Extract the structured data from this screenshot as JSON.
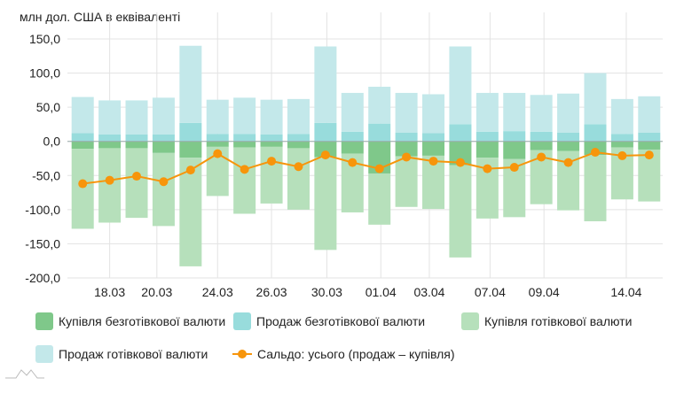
{
  "chart_data": {
    "type": "bar",
    "stacked": true,
    "unit_label": "млн дол. США в еквіваленті",
    "ylim": [
      -200,
      150
    ],
    "yticks": [
      "150,0",
      "100,0",
      "50,0",
      "0,0",
      "-50,0",
      "-100,0",
      "-150,0",
      "-200,0"
    ],
    "ytick_values": [
      150,
      100,
      50,
      0,
      -50,
      -100,
      -150,
      -200
    ],
    "xticks": [
      {
        "label": "18.03",
        "index": 1.0
      },
      {
        "label": "20.03",
        "index": 2.75
      },
      {
        "label": "24.03",
        "index": 5.0
      },
      {
        "label": "26.03",
        "index": 7.0
      },
      {
        "label": "30.03",
        "index": 9.05
      },
      {
        "label": "01.04",
        "index": 11.05
      },
      {
        "label": "03.04",
        "index": 12.85
      },
      {
        "label": "07.04",
        "index": 15.1
      },
      {
        "label": "09.04",
        "index": 17.1
      },
      {
        "label": "14.04",
        "index": 20.15
      }
    ],
    "n_categories": 22,
    "series": [
      {
        "name": "Купівля безготівкової валюти",
        "color": "#7fc88a",
        "values": [
          -11,
          -10,
          -10,
          -17,
          -24,
          -8,
          -9,
          -8,
          -10,
          -23,
          -18,
          -47,
          -22,
          -21,
          -35,
          -24,
          -26,
          -13,
          -14,
          -20,
          -9,
          -12
        ]
      },
      {
        "name": "Продаж безготівкової валюти",
        "color": "#98dcdc",
        "values": [
          12,
          10,
          10,
          10,
          27,
          11,
          11,
          10,
          11,
          27,
          14,
          26,
          13,
          12,
          25,
          14,
          15,
          14,
          13,
          25,
          11,
          13
        ]
      },
      {
        "name": "Купівля готівкової валюти",
        "color": "#b6e0bb",
        "values": [
          -117,
          -109,
          -102,
          -107,
          -159,
          -72,
          -97,
          -83,
          -90,
          -136,
          -86,
          -75,
          -74,
          -78,
          -135,
          -89,
          -85,
          -79,
          -87,
          -97,
          -76,
          -76
        ]
      },
      {
        "name": "Продаж готівкової валюти",
        "color": "#c3e8ea",
        "values": [
          53,
          50,
          50,
          54,
          113,
          50,
          53,
          51,
          51,
          112,
          57,
          54,
          58,
          57,
          114,
          57,
          56,
          54,
          57,
          75,
          51,
          53
        ]
      },
      {
        "name": "Сальдо: усього (продаж – купівля)",
        "type": "line",
        "color": "#f7950b",
        "values": [
          -62,
          -57,
          -51,
          -59,
          -42,
          -18,
          -41,
          -29,
          -37,
          -20,
          -31,
          -40,
          -23,
          -29,
          -31,
          -40,
          -38,
          -23,
          -31,
          -16,
          -21,
          -20
        ]
      }
    ],
    "grid": true,
    "legend_position": "bottom"
  }
}
